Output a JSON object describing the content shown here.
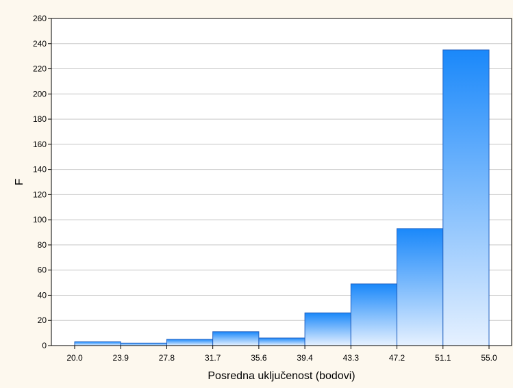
{
  "colors": {
    "page_background": "#fdf8ee",
    "plot_background": "#ffffff",
    "gridline": "#c8c8c8",
    "bar_stroke": "#1f5fbf",
    "bar_fill_top": "#1a88fa",
    "bar_fill_bottom": "#e6f1ff",
    "axis": "#000000"
  },
  "chart_data": {
    "type": "bar",
    "title": "",
    "xlabel": "Posredna uključenost (bodovi)",
    "ylabel": "F",
    "ylim": [
      0,
      260
    ],
    "grid": true,
    "legend": "none",
    "ytick_labels": [
      "0",
      "20",
      "40",
      "60",
      "80",
      "100",
      "120",
      "140",
      "160",
      "180",
      "200",
      "220",
      "240",
      "260"
    ],
    "xtick_labels": [
      "20.0",
      "23.9",
      "27.8",
      "31.7",
      "35.6",
      "39.4",
      "43.3",
      "47.2",
      "51.1",
      "55.0"
    ],
    "categories": [
      "20.0",
      "23.9",
      "27.8",
      "31.7",
      "35.6",
      "39.4",
      "43.3",
      "47.2",
      "51.1"
    ],
    "bin_edges": [
      20.0,
      23.9,
      27.8,
      31.7,
      35.6,
      39.4,
      43.3,
      47.2,
      51.1,
      55.0
    ],
    "values": [
      3,
      2,
      5,
      11,
      6,
      26,
      49,
      93,
      235
    ]
  }
}
